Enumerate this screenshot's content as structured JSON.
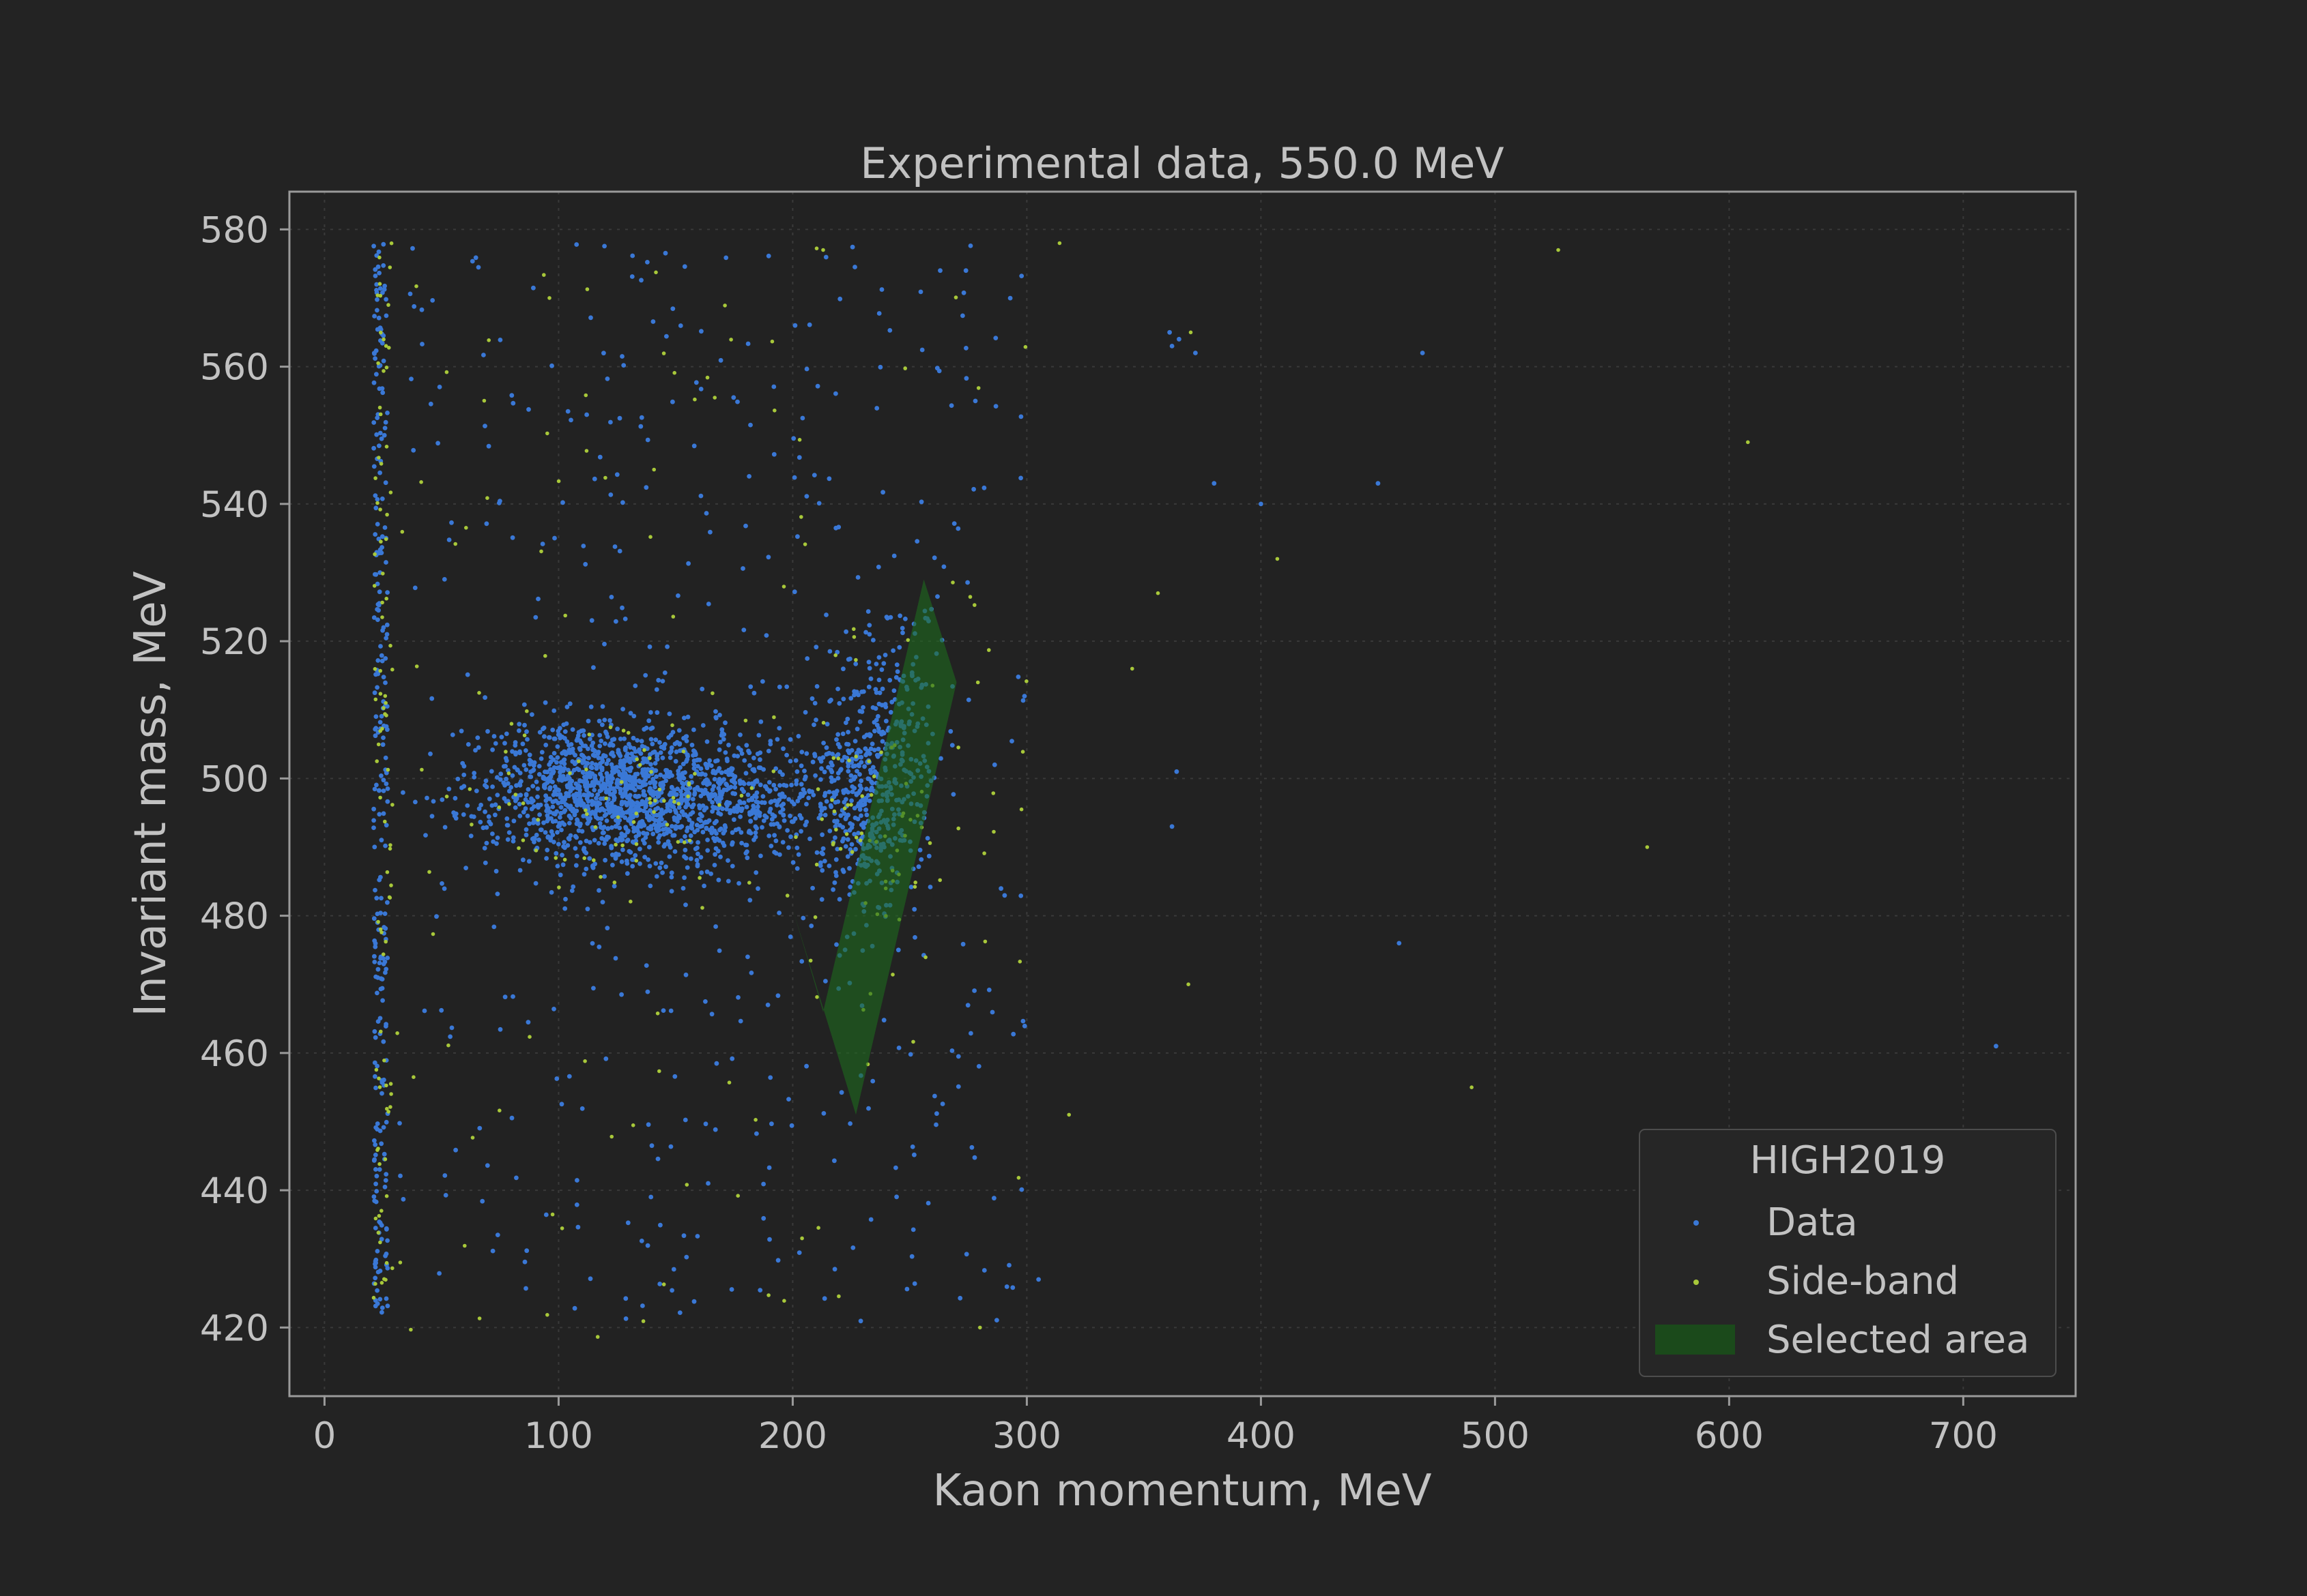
{
  "chart_data": {
    "type": "scatter",
    "title": "Experimental data, 550.0 MeV",
    "xlabel": "Kaon momentum, MeV",
    "ylabel": "Invariant mass, MeV",
    "xlim": [
      -15,
      748
    ],
    "ylim": [
      410,
      585.5
    ],
    "x_ticks": [
      0,
      100,
      200,
      300,
      400,
      500,
      600,
      700
    ],
    "y_ticks": [
      420,
      440,
      460,
      480,
      500,
      520,
      540,
      560,
      580
    ],
    "grid": true,
    "legend": {
      "title": "HIGH2019",
      "placement": "lower-right",
      "entries": [
        {
          "label": "Data",
          "kind": "marker",
          "color": "#3a78d6"
        },
        {
          "label": "Side-band",
          "kind": "marker",
          "color": "#a8c83a"
        },
        {
          "label": "Selected area",
          "kind": "patch",
          "color": "#1b4a1b"
        }
      ]
    },
    "selected_area": {
      "color": "#1e6b1e",
      "opacity": 0.6,
      "polygon": [
        [
          213,
          466
        ],
        [
          256,
          529
        ],
        [
          270,
          514
        ],
        [
          227,
          451
        ],
        [
          200,
          481
        ]
      ]
    },
    "series": [
      {
        "name": "Data",
        "color": "#3a78d6",
        "clusters": [
          {
            "center": [
              125,
              498
            ],
            "spread": [
              28,
              5.5
            ],
            "count": 1400
          },
          {
            "center": [
              185,
              497
            ],
            "spread": [
              22,
              4
            ],
            "count": 320
          },
          {
            "center": [
              232,
              498
            ],
            "spread": [
              12,
              9
            ],
            "count": 380
          },
          {
            "center": [
              246,
              508
            ],
            "spread": [
              10,
              10
            ],
            "count": 120
          }
        ],
        "vertical_band": {
          "x": [
            21,
            27
          ],
          "y": [
            422,
            578
          ],
          "count": 260
        },
        "background": {
          "x": [
            30,
            300
          ],
          "y": [
            420,
            578
          ],
          "count": 420
        },
        "points": [
          [
            361,
            565
          ],
          [
            362,
            563
          ],
          [
            365,
            564
          ],
          [
            372,
            562
          ],
          [
            469,
            562
          ],
          [
            450,
            543
          ],
          [
            380,
            543
          ],
          [
            400,
            540
          ],
          [
            459,
            476
          ],
          [
            714,
            461
          ],
          [
            305,
            427
          ],
          [
            362,
            493
          ],
          [
            364,
            501
          ],
          [
            299,
            512
          ],
          [
            274,
            574
          ],
          [
            278,
            555
          ],
          [
            263,
            574
          ],
          [
            201,
            566
          ]
        ]
      },
      {
        "name": "Side-band",
        "color": "#a8c83a",
        "clusters": [
          {
            "center": [
              125,
              497
            ],
            "spread": [
              30,
              6
            ],
            "count": 70
          },
          {
            "center": [
              235,
              495
            ],
            "spread": [
              14,
              10
            ],
            "count": 60
          }
        ],
        "vertical_band": {
          "x": [
            21,
            29
          ],
          "y": [
            422,
            578
          ],
          "count": 90
        },
        "background": {
          "x": [
            30,
            300
          ],
          "y": [
            418,
            578
          ],
          "count": 110
        },
        "points": [
          [
            314,
            578
          ],
          [
            527,
            577
          ],
          [
            608,
            549
          ],
          [
            407,
            532
          ],
          [
            356,
            527
          ],
          [
            345,
            516
          ],
          [
            565,
            490
          ],
          [
            369,
            470
          ],
          [
            490,
            455
          ],
          [
            318,
            451
          ],
          [
            370,
            565
          ],
          [
            280,
            420
          ],
          [
            204,
            433
          ],
          [
            213,
            577
          ]
        ]
      }
    ]
  }
}
